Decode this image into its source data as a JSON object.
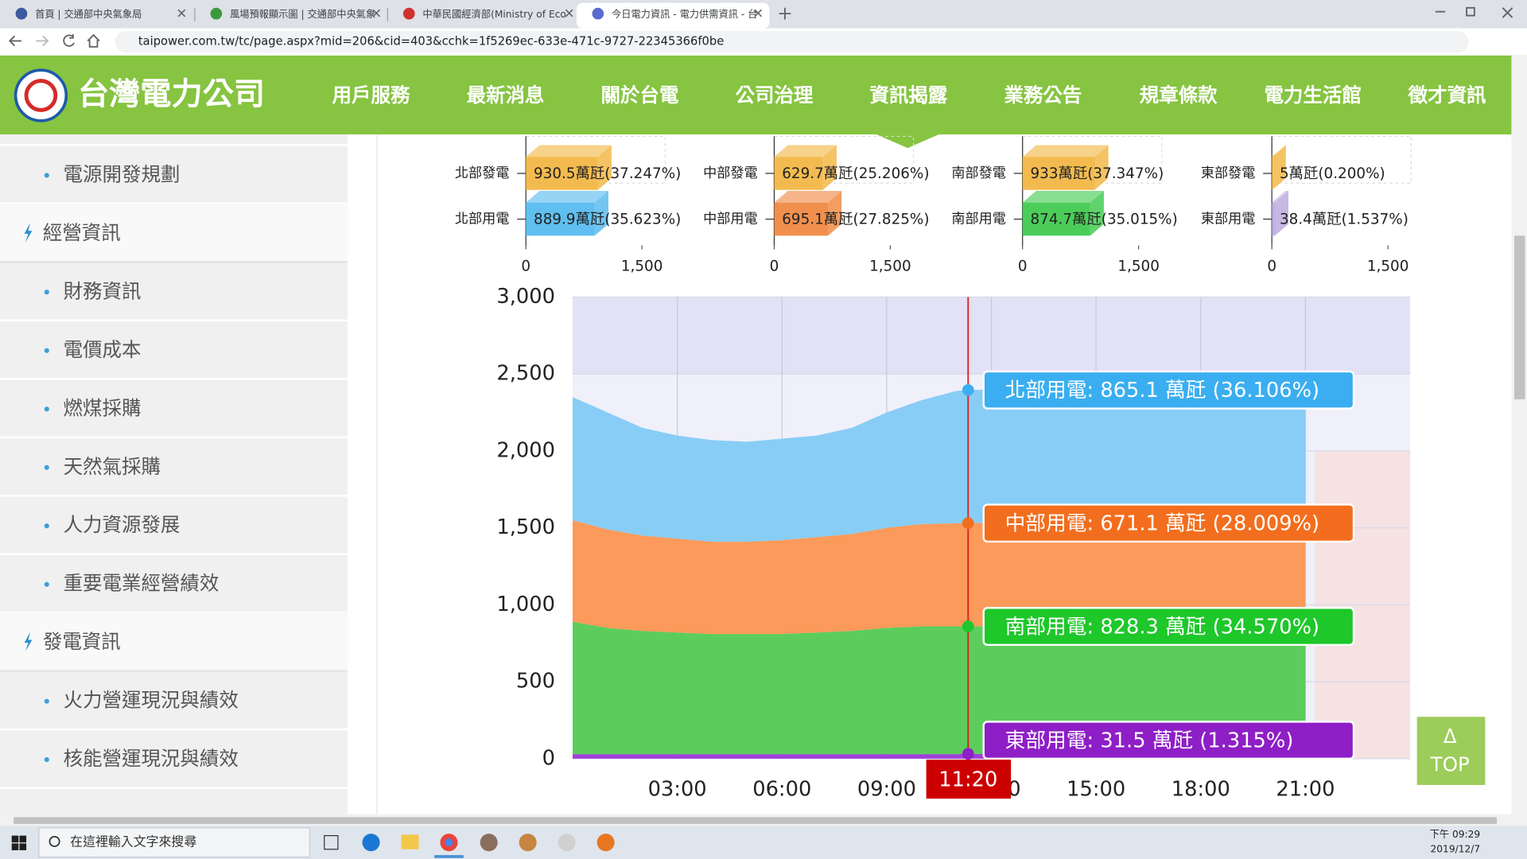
{
  "browser": {
    "tabs": [
      "首頁 | 交通部中央氣象局",
      "風場預報顯示圖 | 交通部中央氣象",
      "中華民國經濟部(Ministry of Eco",
      "今日電力資訊 - 電力供需資訊 - 台"
    ],
    "url": "taipower.com.tw/tc/page.aspx?mid=206&cid=403&cchk=1f5269ec-633e-471c-9727-22345366f0be"
  },
  "site": {
    "logo": "台灣電力公司",
    "nav": [
      "用戶服務",
      "最新消息",
      "關於台電",
      "公司治理",
      "資訊揭露",
      "業務公告",
      "規章條款",
      "電力生活館",
      "徵才資訊"
    ]
  },
  "sidebar": [
    {
      "items": [
        "電源開發規劃"
      ]
    },
    {
      "title": "經營資訊",
      "items": [
        "財務資訊",
        "電價成本",
        "燃煤採購",
        "天然氣採購",
        "人力資源發展",
        "重要電業經營績效"
      ]
    },
    {
      "title": "發電資訊",
      "items": [
        "火力營運現況與績效",
        "核能營運現況與績效"
      ]
    }
  ],
  "chart_data": [
    {
      "type": "hbar",
      "categories": [
        "北部發電",
        "北部用電"
      ],
      "values": [
        930.5,
        889.9
      ],
      "value_labels": [
        "930.5萬瓩(37.247%)",
        "889.9萬瓩(35.623%)"
      ],
      "colors": [
        "#f2b43c",
        "#4fb8ee"
      ],
      "xlim": [
        0,
        1800
      ],
      "xticks": [
        0,
        {
          "value": 1500,
          "label": "1,500"
        }
      ]
    },
    {
      "type": "hbar",
      "categories": [
        "中部發電",
        "中部用電"
      ],
      "values": [
        629.7,
        695.1
      ],
      "value_labels": [
        "629.7萬瓩(25.206%)",
        "695.1萬瓩(27.825%)"
      ],
      "colors": [
        "#f2b43c",
        "#f0843a"
      ],
      "xlim": [
        0,
        1800
      ],
      "xticks": [
        0,
        {
          "value": 1500,
          "label": "1,500"
        }
      ]
    },
    {
      "type": "hbar",
      "categories": [
        "南部發電",
        "南部用電"
      ],
      "values": [
        933,
        874.7
      ],
      "value_labels": [
        "933萬瓩(37.347%)",
        "874.7萬瓩(35.015%)"
      ],
      "colors": [
        "#f2b43c",
        "#38c848"
      ],
      "xlim": [
        0,
        1800
      ],
      "xticks": [
        0,
        {
          "value": 1500,
          "label": "1,500"
        }
      ]
    },
    {
      "type": "hbar",
      "categories": [
        "東部發電",
        "東部用電"
      ],
      "values": [
        5,
        38.4
      ],
      "value_labels": [
        "5萬瓩(0.200%)",
        "38.4萬瓩(1.537%)"
      ],
      "colors": [
        "#f2b43c",
        "#b8a6dc"
      ],
      "xlim": [
        0,
        1800
      ],
      "xticks": [
        0,
        {
          "value": 1500,
          "label": "1,500"
        }
      ]
    },
    {
      "type": "stacked-area",
      "x": [
        "00:00",
        "01:00",
        "02:00",
        "03:00",
        "04:00",
        "05:00",
        "06:00",
        "07:00",
        "08:00",
        "09:00",
        "10:00",
        "11:00",
        "11:20",
        "12:00",
        "13:00",
        "14:00",
        "15:00",
        "16:00",
        "17:00",
        "18:00",
        "19:00",
        "20:00",
        "21:00"
      ],
      "xlim": [
        "00:00",
        "24:00"
      ],
      "xticks": [
        "03:00",
        "06:00",
        "09:00",
        "12:00",
        "15:00",
        "18:00",
        "21:00"
      ],
      "ylim": [
        0,
        3000
      ],
      "yticks": [
        0,
        500,
        {
          "value": 1000,
          "label": "1,000"
        },
        {
          "value": 1500,
          "label": "1,500"
        },
        {
          "value": 2000,
          "label": "2,000"
        },
        {
          "value": 2500,
          "label": "2,500"
        },
        {
          "value": 3000,
          "label": "3,000"
        }
      ],
      "series": [
        {
          "label": "東部用電: 31.5 萬瓩 (1.315%)",
          "color": "#a040d8",
          "label_color": "#8e1ec6",
          "values": [
            30,
            30,
            30,
            30,
            30,
            30,
            30,
            30,
            30,
            30,
            30,
            30,
            31.5,
            31,
            31,
            31,
            31,
            31,
            31,
            31,
            31,
            31,
            31
          ]
        },
        {
          "label": "南部用電: 828.3 萬瓩 (34.570%)",
          "color": "#5ccd5c",
          "label_color": "#1ec72a",
          "values": [
            860,
            820,
            800,
            790,
            780,
            780,
            780,
            790,
            800,
            820,
            830,
            830,
            828.3,
            830,
            830,
            830,
            830,
            830,
            830,
            830,
            830,
            830,
            830
          ]
        },
        {
          "label": "中部用電: 671.1 萬瓩 (28.009%)",
          "color": "#fb9a5a",
          "label_color": "#f26e1e",
          "values": [
            660,
            640,
            620,
            610,
            600,
            600,
            610,
            620,
            630,
            650,
            665,
            670,
            671.1,
            672,
            672,
            672,
            672,
            672,
            672,
            672,
            672,
            672,
            672
          ]
        },
        {
          "label": "北部用電: 865.1 萬瓩 (36.106%)",
          "color": "#88cdf6",
          "label_color": "#3aaef0",
          "values": [
            800,
            760,
            700,
            670,
            660,
            650,
            660,
            660,
            690,
            750,
            805,
            860,
            865.1,
            866,
            866,
            866,
            866,
            866,
            866,
            866,
            866,
            866,
            866
          ]
        }
      ],
      "marker_index_x": "11:20"
    }
  ],
  "top_button": {
    "icon": "Δ",
    "label": "TOP"
  },
  "taskbar": {
    "search": "在這裡輸入文字來搜尋",
    "time": "下午 09:29",
    "date": "2019/12/7"
  }
}
